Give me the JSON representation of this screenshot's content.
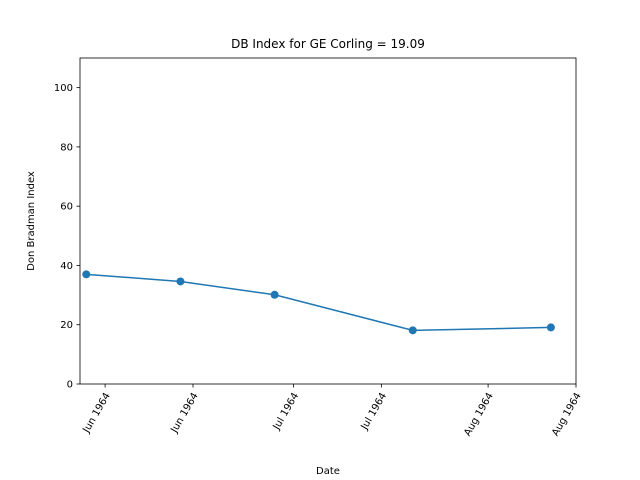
{
  "chart_data": {
    "type": "line",
    "title": "DB Index for GE Corling = 19.09",
    "xlabel": "Date",
    "ylabel": "Don Bradman Index",
    "ylim": [
      0,
      110
    ],
    "yticks": [
      0,
      20,
      40,
      60,
      80,
      100
    ],
    "x_ticks": [
      {
        "date": "1964-06-01",
        "label": "Jun 1964"
      },
      {
        "date": "1964-06-15",
        "label": "Jun 1964"
      },
      {
        "date": "1964-07-01",
        "label": "Jul 1964"
      },
      {
        "date": "1964-07-15",
        "label": "Jul 1964"
      },
      {
        "date": "1964-08-01",
        "label": "Aug 1964"
      },
      {
        "date": "1964-08-15",
        "label": "Aug 1964"
      }
    ],
    "xlim": [
      "1964-05-28",
      "1964-08-15"
    ],
    "series": [
      {
        "color": "#1f77b4",
        "marker": "circle",
        "points": [
          {
            "x": "1964-05-29",
            "y": 37.0
          },
          {
            "x": "1964-06-13",
            "y": 34.6
          },
          {
            "x": "1964-06-28",
            "y": 30.1
          },
          {
            "x": "1964-07-20",
            "y": 18.1
          },
          {
            "x": "1964-08-11",
            "y": 19.09
          }
        ]
      }
    ],
    "grid": false,
    "legend": "none"
  }
}
